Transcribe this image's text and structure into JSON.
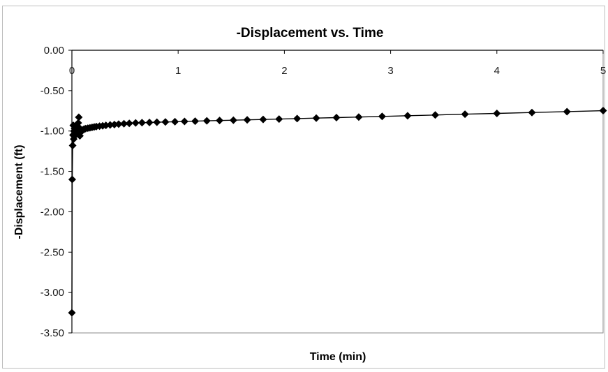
{
  "chart_data": {
    "type": "scatter",
    "title": "-Displacement vs. Time",
    "xlabel": "Time (min)",
    "ylabel": "-Displacement (ft)",
    "xlim": [
      0,
      5
    ],
    "ylim": [
      -3.5,
      0
    ],
    "x_tick_labels": [
      "0",
      "1",
      "2",
      "3",
      "4",
      "5"
    ],
    "y_tick_labels": [
      "0.00",
      "-0.50",
      "-1.00",
      "-1.50",
      "-2.00",
      "-2.50",
      "-3.00",
      "-3.50"
    ],
    "x_axis_position": "top",
    "grid": false,
    "legend": "none",
    "marker": "diamond",
    "line": true,
    "color": "#000000",
    "series": [
      {
        "x": [
          0.0,
          0.003,
          0.007,
          0.01,
          0.013,
          0.017,
          0.02,
          0.025,
          0.03,
          0.035,
          0.04,
          0.045,
          0.05,
          0.055,
          0.06,
          0.065,
          0.07,
          0.075,
          0.08,
          0.09,
          0.1,
          0.11,
          0.12,
          0.13,
          0.15,
          0.17,
          0.19,
          0.21,
          0.23,
          0.26,
          0.29,
          0.32,
          0.36,
          0.4,
          0.44,
          0.49,
          0.54,
          0.6,
          0.66,
          0.73,
          0.8,
          0.88,
          0.97,
          1.06,
          1.16,
          1.27,
          1.39,
          1.52,
          1.65,
          1.8,
          1.95,
          2.12,
          2.3,
          2.49,
          2.7,
          2.92,
          3.16,
          3.42,
          3.7,
          4.0,
          4.33,
          4.66,
          5.0
        ],
        "y": [
          -3.25,
          -1.6,
          -1.18,
          -1.05,
          -0.93,
          -1.1,
          -1.0,
          -0.97,
          -1.02,
          -1.05,
          -0.98,
          -0.95,
          -1.0,
          -1.03,
          -0.9,
          -0.83,
          -0.96,
          -1.06,
          -1.02,
          -1.0,
          -0.99,
          -0.98,
          -0.975,
          -0.97,
          -0.965,
          -0.96,
          -0.955,
          -0.95,
          -0.945,
          -0.94,
          -0.935,
          -0.93,
          -0.925,
          -0.92,
          -0.915,
          -0.91,
          -0.905,
          -0.9,
          -0.897,
          -0.894,
          -0.891,
          -0.888,
          -0.885,
          -0.882,
          -0.878,
          -0.874,
          -0.87,
          -0.866,
          -0.862,
          -0.857,
          -0.852,
          -0.846,
          -0.84,
          -0.834,
          -0.827,
          -0.819,
          -0.811,
          -0.802,
          -0.792,
          -0.782,
          -0.771,
          -0.76,
          -0.748
        ]
      }
    ]
  }
}
